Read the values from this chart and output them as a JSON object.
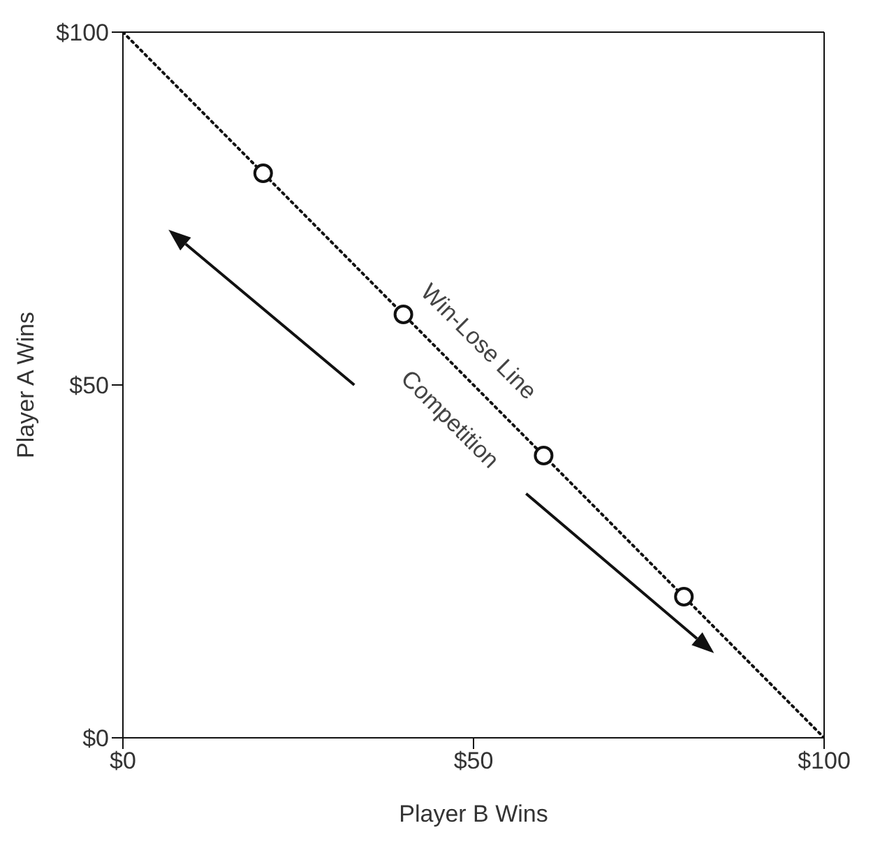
{
  "chart_data": {
    "type": "scatter",
    "xlabel": "Player B Wins",
    "ylabel": "Player A Wins",
    "xlim": [
      0,
      100
    ],
    "ylim": [
      0,
      100
    ],
    "xticks": [
      {
        "value": 0,
        "label": "$0"
      },
      {
        "value": 50,
        "label": "$50"
      },
      {
        "value": 100,
        "label": "$100"
      }
    ],
    "yticks": [
      {
        "value": 0,
        "label": "$0"
      },
      {
        "value": 50,
        "label": "$50"
      },
      {
        "value": 100,
        "label": "$100"
      }
    ],
    "series": [
      {
        "type": "line",
        "color": "#111111",
        "x": [
          0,
          100
        ],
        "values": [
          100,
          0
        ],
        "line_style": "dotted",
        "marker": "none"
      },
      {
        "color": "#111111",
        "x": [
          20,
          40,
          60,
          80
        ],
        "values": [
          80,
          60,
          40,
          20
        ],
        "marker": "circle"
      }
    ],
    "annotations": [
      "Win-Lose Line",
      "Competition"
    ]
  }
}
